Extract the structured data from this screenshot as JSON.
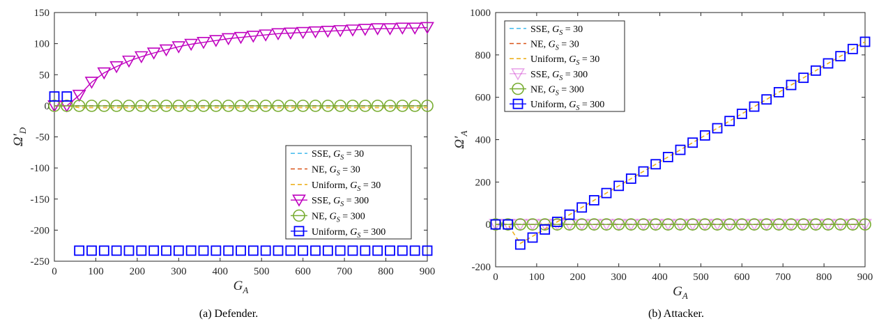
{
  "colors": {
    "sse30": "#4DBEEE",
    "ne30": "#D95319",
    "uni30": "#EDB120",
    "sse300": "#BF00BF",
    "ne300": "#77AC30",
    "uni300": "#0000FF"
  },
  "chart_data": [
    {
      "type": "line",
      "caption": "(a) Defender.",
      "xlabel": "G",
      "xlabel_sub": "A",
      "ylabel": "Ω′",
      "ylabel_sub": "D",
      "xlim": [
        0,
        900
      ],
      "ylim": [
        -250,
        150
      ],
      "xticks": [
        "0",
        "100",
        "200",
        "300",
        "400",
        "500",
        "600",
        "700",
        "800",
        "900"
      ],
      "yticks": [
        "150",
        "100",
        "50",
        "0",
        "-50",
        "-100",
        "-150",
        "-200",
        "-250"
      ],
      "legend_position": "lower-right",
      "legend": [
        {
          "label": "SSE, ",
          "eq": "G",
          "sub": "S",
          "val": " = 30",
          "marker": "none",
          "color": "sse30"
        },
        {
          "label": "NE, ",
          "eq": "G",
          "sub": "S",
          "val": " = 30",
          "marker": "none",
          "color": "ne30"
        },
        {
          "label": "Uniform, ",
          "eq": "G",
          "sub": "S",
          "val": " = 30",
          "marker": "none",
          "color": "uni30"
        },
        {
          "label": "SSE, ",
          "eq": "G",
          "sub": "S",
          "val": " = 300",
          "marker": "triangle-down",
          "color": "sse300"
        },
        {
          "label": "NE, ",
          "eq": "G",
          "sub": "S",
          "val": " = 300",
          "marker": "circle",
          "color": "ne300"
        },
        {
          "label": "Uniform, ",
          "eq": "G",
          "sub": "S",
          "val": " = 300",
          "marker": "square",
          "color": "uni300"
        }
      ],
      "x": [
        0,
        30,
        60,
        90,
        120,
        150,
        180,
        210,
        240,
        270,
        300,
        330,
        360,
        390,
        420,
        450,
        480,
        510,
        540,
        570,
        600,
        630,
        660,
        690,
        720,
        750,
        780,
        810,
        840,
        870,
        900
      ],
      "series": [
        {
          "name": "SSE, G_S = 30",
          "color": "sse30",
          "style": "dashed",
          "marker": "none",
          "values": [
            0,
            0,
            0,
            0,
            0,
            0,
            0,
            0,
            0,
            0,
            0,
            0,
            0,
            0,
            0,
            0,
            0,
            0,
            0,
            0,
            0,
            0,
            0,
            0,
            0,
            0,
            0,
            0,
            0,
            0,
            0
          ]
        },
        {
          "name": "NE, G_S = 30",
          "color": "ne30",
          "style": "dashed",
          "marker": "none",
          "values": [
            0,
            0,
            0,
            0,
            0,
            0,
            0,
            0,
            0,
            0,
            0,
            0,
            0,
            0,
            0,
            0,
            0,
            0,
            0,
            0,
            0,
            0,
            0,
            0,
            0,
            0,
            0,
            0,
            0,
            0,
            0
          ]
        },
        {
          "name": "Uniform, G_S = 30",
          "color": "uni30",
          "style": "dashed",
          "marker": "none",
          "values": [
            0,
            0,
            -3,
            -3,
            -3,
            -3,
            -3,
            -3,
            -3,
            -3,
            -3,
            -3,
            -3,
            -3,
            -3,
            -3,
            -3,
            -3,
            -3,
            -3,
            -3,
            -3,
            -3,
            -3,
            -3,
            -3,
            -3,
            -3,
            -3,
            -3,
            -3
          ]
        },
        {
          "name": "SSE, G_S = 300",
          "color": "sse300",
          "style": "solid",
          "marker": "triangle-down",
          "values": [
            0,
            0,
            17,
            38,
            53,
            63,
            72,
            79,
            85,
            90,
            95,
            99,
            102,
            105,
            108,
            110,
            112,
            114,
            116,
            117,
            118,
            119,
            120,
            121,
            122,
            123,
            124,
            124,
            125,
            125,
            126
          ]
        },
        {
          "name": "NE, G_S = 300",
          "color": "ne300",
          "style": "solid",
          "marker": "circle",
          "values": [
            0,
            0,
            0,
            0,
            0,
            0,
            0,
            0,
            0,
            0,
            0,
            0,
            0,
            0,
            0,
            0,
            0,
            0,
            0,
            0,
            0,
            0,
            0,
            0,
            0,
            0,
            0,
            0,
            0,
            0,
            0
          ]
        },
        {
          "name": "Uniform, G_S = 300",
          "color": "uni300",
          "style": "none",
          "marker": "square",
          "values": [
            15,
            15,
            -233,
            -233,
            -233,
            -233,
            -233,
            -233,
            -233,
            -233,
            -233,
            -233,
            -233,
            -233,
            -233,
            -233,
            -233,
            -233,
            -233,
            -233,
            -233,
            -233,
            -233,
            -233,
            -233,
            -233,
            -233,
            -233,
            -233,
            -233,
            -233
          ]
        }
      ]
    },
    {
      "type": "line",
      "caption": "(b) Attacker.",
      "xlabel": "G",
      "xlabel_sub": "A",
      "ylabel": "Ω′",
      "ylabel_sub": "A",
      "xlim": [
        0,
        900
      ],
      "ylim": [
        -200,
        1000
      ],
      "xticks": [
        "0",
        "100",
        "200",
        "300",
        "400",
        "500",
        "600",
        "700",
        "800",
        "900"
      ],
      "yticks": [
        "1000",
        "800",
        "600",
        "400",
        "200",
        "0",
        "-200"
      ],
      "legend_position": "top-left",
      "legend": [
        {
          "label": "SSE, ",
          "eq": "G",
          "sub": "S",
          "val": " = 30",
          "marker": "none",
          "color": "sse30"
        },
        {
          "label": "NE, ",
          "eq": "G",
          "sub": "S",
          "val": " = 30",
          "marker": "none",
          "color": "ne30"
        },
        {
          "label": "Uniform, ",
          "eq": "G",
          "sub": "S",
          "val": " = 30",
          "marker": "none",
          "color": "uni30"
        },
        {
          "label": "SSE, ",
          "eq": "G",
          "sub": "S",
          "val": " = 300",
          "marker": "triangle-down",
          "color": "sse300",
          "faded": true
        },
        {
          "label": "NE, ",
          "eq": "G",
          "sub": "S",
          "val": " = 300",
          "marker": "circle",
          "color": "ne300"
        },
        {
          "label": "Uniform, ",
          "eq": "G",
          "sub": "S",
          "val": " = 300",
          "marker": "square",
          "color": "uni300"
        }
      ],
      "x": [
        0,
        30,
        60,
        90,
        120,
        150,
        180,
        210,
        240,
        270,
        300,
        330,
        360,
        390,
        420,
        450,
        480,
        510,
        540,
        570,
        600,
        630,
        660,
        690,
        720,
        750,
        780,
        810,
        840,
        870,
        900
      ],
      "series": [
        {
          "name": "SSE, G_S = 30",
          "color": "sse30",
          "style": "dashed",
          "marker": "none",
          "values": [
            0,
            0,
            0,
            0,
            0,
            0,
            0,
            0,
            0,
            0,
            0,
            0,
            0,
            0,
            0,
            0,
            0,
            0,
            0,
            0,
            0,
            0,
            0,
            0,
            0,
            0,
            0,
            0,
            0,
            0,
            0
          ]
        },
        {
          "name": "NE, G_S = 30",
          "color": "ne30",
          "style": "dashed",
          "marker": "none",
          "values": [
            0,
            0,
            0,
            0,
            0,
            0,
            0,
            0,
            0,
            0,
            0,
            0,
            0,
            0,
            0,
            0,
            0,
            0,
            0,
            0,
            0,
            0,
            0,
            0,
            0,
            0,
            0,
            0,
            0,
            0,
            0
          ]
        },
        {
          "name": "Uniform, G_S = 30",
          "color": "uni30",
          "style": "dashed",
          "marker": "none",
          "values": [
            0,
            0,
            -90,
            -56,
            -22,
            12,
            46,
            80,
            114,
            148,
            182,
            216,
            250,
            284,
            318,
            352,
            386,
            420,
            454,
            488,
            522,
            556,
            590,
            624,
            658,
            692,
            726,
            760,
            794,
            828,
            862
          ]
        },
        {
          "name": "SSE, G_S = 300",
          "color": "sse300",
          "style": "solid",
          "marker": "triangle-down",
          "faded": true,
          "values": [
            0,
            0,
            0,
            0,
            0,
            0,
            0,
            0,
            0,
            0,
            0,
            0,
            0,
            0,
            0,
            0,
            0,
            0,
            0,
            0,
            0,
            0,
            0,
            0,
            0,
            0,
            0,
            0,
            0,
            0,
            0
          ]
        },
        {
          "name": "NE, G_S = 300",
          "color": "ne300",
          "style": "solid",
          "marker": "circle",
          "values": [
            0,
            0,
            0,
            0,
            0,
            0,
            0,
            0,
            0,
            0,
            0,
            0,
            0,
            0,
            0,
            0,
            0,
            0,
            0,
            0,
            0,
            0,
            0,
            0,
            0,
            0,
            0,
            0,
            0,
            0,
            0
          ]
        },
        {
          "name": "Uniform, G_S = 300",
          "color": "uni300",
          "style": "none",
          "marker": "square",
          "values": [
            0,
            0,
            -95,
            -62,
            -24,
            12,
            46,
            80,
            114,
            148,
            182,
            216,
            250,
            284,
            318,
            352,
            386,
            420,
            454,
            488,
            522,
            556,
            590,
            624,
            658,
            692,
            726,
            760,
            794,
            828,
            862
          ]
        }
      ]
    }
  ]
}
